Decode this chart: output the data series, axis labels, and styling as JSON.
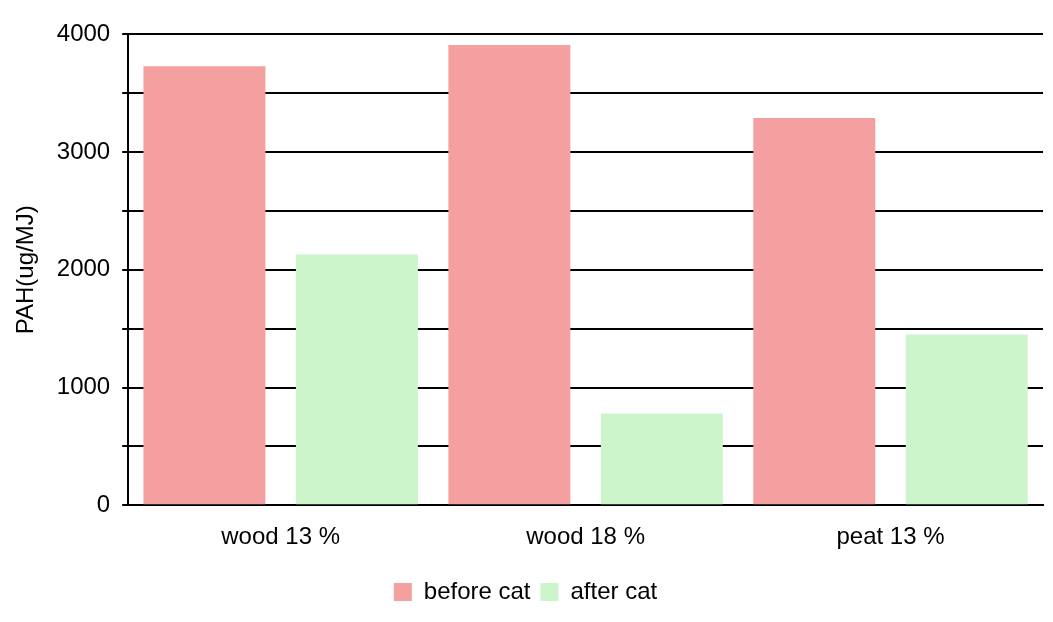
{
  "chart_data": {
    "type": "bar",
    "ylabel": "PAH(ug/MJ)",
    "categories": [
      "wood 13 %",
      "wood 18 %",
      "peat 13 %"
    ],
    "series": [
      {
        "name": "before cat",
        "color": "#f4a0a0",
        "values": [
          3730,
          3910,
          3290
        ]
      },
      {
        "name": "after cat",
        "color": "#ccf5cc",
        "values": [
          2130,
          780,
          1450
        ]
      }
    ],
    "ylim": [
      0,
      4000
    ],
    "yticks": [
      0,
      {
        "value": 500,
        "label": null
      },
      1000,
      {
        "value": 1500,
        "label": null
      },
      2000,
      {
        "value": 2500,
        "label": null
      },
      3000,
      {
        "value": 3500,
        "label": null
      },
      4000
    ],
    "grid": "y",
    "legend": "bottom"
  }
}
